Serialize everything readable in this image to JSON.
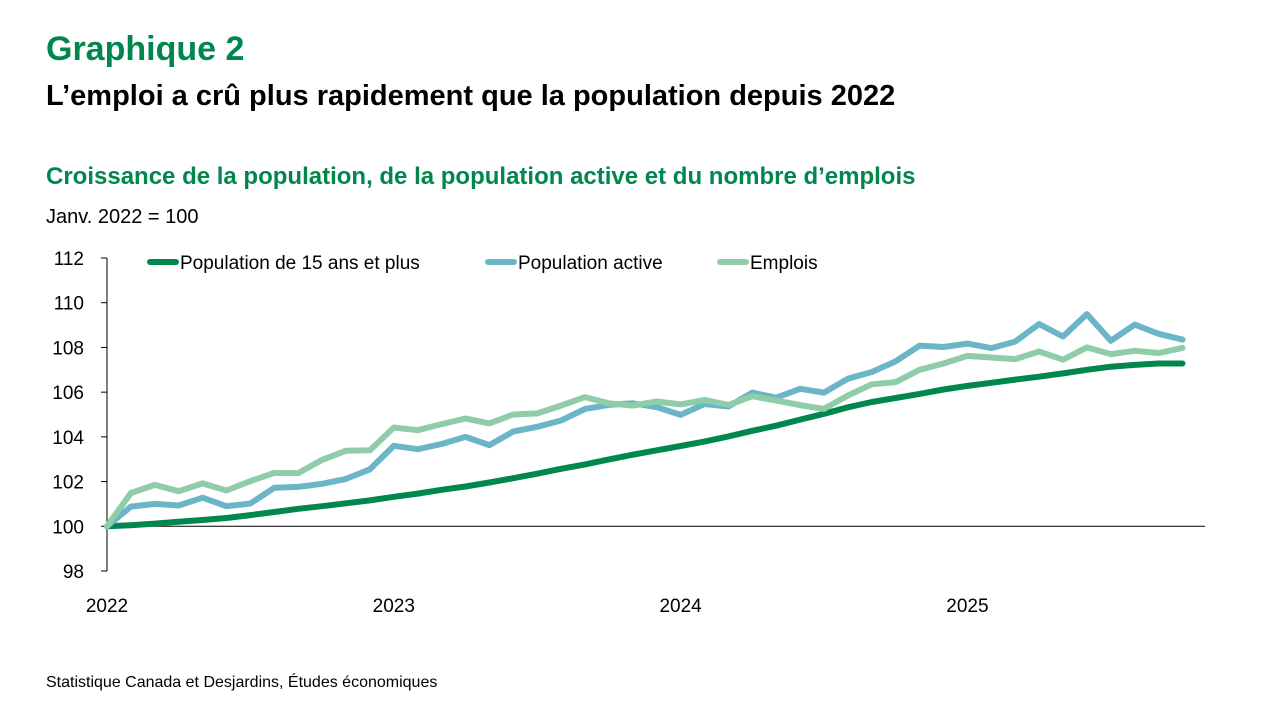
{
  "header": {
    "graph_label": "Graphique 2",
    "title": "L’emploi a crû plus rapidement que la population depuis 2022",
    "subtitle": "Croissance de la population, de la population active et du nombre d’emplois",
    "unit_note": "Janv. 2022 = 100"
  },
  "footer": {
    "source": "Statistique Canada et Desjardins, Études économiques"
  },
  "chart_data": {
    "type": "line",
    "title": "Croissance de la population, de la population active et du nombre d’emplois",
    "ylabel": "Janv. 2022 = 100",
    "xlabel": "",
    "x_start": "2022-01",
    "x_frequency": "monthly",
    "x_tick_labels": [
      "2022",
      "2023",
      "2024",
      "2025"
    ],
    "y_tick_labels": [
      "98",
      "100",
      "102",
      "104",
      "106",
      "108",
      "110",
      "112"
    ],
    "ylim": [
      98,
      112
    ],
    "y_ticks": [
      98,
      100,
      102,
      104,
      106,
      108,
      110,
      112
    ],
    "x_axis_crosses_at": 100,
    "grid": false,
    "legend_position": "top",
    "series": [
      {
        "name": "Population de 15 ans et plus",
        "color": "#00874e",
        "values": [
          100.0,
          100.05,
          100.12,
          100.2,
          100.28,
          100.37,
          100.5,
          100.64,
          100.78,
          100.9,
          101.03,
          101.16,
          101.32,
          101.46,
          101.63,
          101.78,
          101.96,
          102.15,
          102.35,
          102.57,
          102.77,
          102.99,
          103.2,
          103.4,
          103.59,
          103.79,
          104.02,
          104.27,
          104.5,
          104.77,
          105.03,
          105.32,
          105.56,
          105.74,
          105.92,
          106.12,
          106.28,
          106.42,
          106.56,
          106.69,
          106.84,
          107.0,
          107.14,
          107.22,
          107.28,
          107.28
        ]
      },
      {
        "name": "Population active",
        "color": "#6bb5c8",
        "values": [
          100.0,
          100.88,
          101.0,
          100.93,
          101.28,
          100.9,
          101.02,
          101.72,
          101.76,
          101.9,
          102.12,
          102.55,
          103.6,
          103.45,
          103.68,
          104.0,
          103.63,
          104.24,
          104.45,
          104.73,
          105.25,
          105.43,
          105.5,
          105.33,
          104.98,
          105.47,
          105.36,
          105.98,
          105.75,
          106.15,
          105.98,
          106.6,
          106.9,
          107.38,
          108.08,
          108.02,
          108.17,
          107.97,
          108.26,
          109.05,
          108.49,
          109.49,
          108.3,
          109.02,
          108.61,
          108.35
        ]
      },
      {
        "name": "Emplois",
        "color": "#8fcca8",
        "values": [
          100.0,
          101.49,
          101.85,
          101.57,
          101.92,
          101.6,
          102.02,
          102.39,
          102.38,
          102.97,
          103.38,
          103.4,
          104.42,
          104.3,
          104.57,
          104.82,
          104.6,
          105.0,
          105.05,
          105.4,
          105.78,
          105.5,
          105.4,
          105.58,
          105.45,
          105.65,
          105.43,
          105.82,
          105.62,
          105.42,
          105.25,
          105.85,
          106.35,
          106.45,
          107.0,
          107.28,
          107.62,
          107.55,
          107.48,
          107.82,
          107.45,
          108.0,
          107.7,
          107.85,
          107.75,
          107.98
        ]
      }
    ]
  }
}
